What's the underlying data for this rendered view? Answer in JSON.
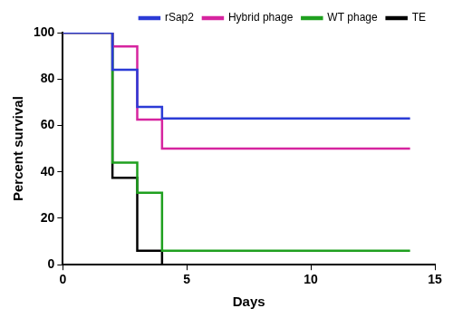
{
  "chart_data": {
    "type": "line",
    "x_label": "Days",
    "y_label": "Percent survival",
    "x": [
      0,
      2,
      3,
      4,
      14
    ],
    "series": [
      {
        "name": "rSap2",
        "color": "#2b3bd6",
        "values": [
          100,
          84,
          68,
          63,
          63
        ]
      },
      {
        "name": "Hybrid phage",
        "color": "#d6249f",
        "values": [
          100,
          94,
          62.5,
          50,
          50
        ]
      },
      {
        "name": "WT phage",
        "color": "#1fa01f",
        "values": [
          100,
          44,
          31,
          6,
          6
        ]
      },
      {
        "name": "TE",
        "color": "#000000",
        "values": [
          100,
          37.5,
          6,
          0,
          0
        ]
      }
    ],
    "xlim": [
      0,
      15
    ],
    "xticks": [
      0,
      5,
      10,
      15
    ],
    "ylim": [
      0,
      100
    ],
    "yticks": [
      0,
      20,
      40,
      60,
      80,
      100
    ],
    "grid": false,
    "legend": "top-right",
    "line_style": "steps"
  }
}
